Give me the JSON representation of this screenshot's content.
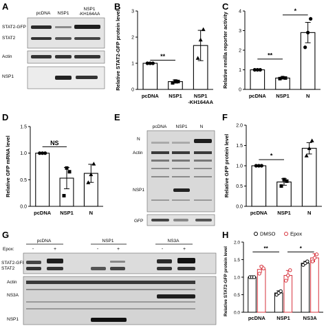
{
  "figure": {
    "panel_letters": [
      "A",
      "B",
      "C",
      "D",
      "E",
      "F",
      "G",
      "H"
    ],
    "blot_A": {
      "lanes": [
        "pcDNA",
        "NSP1",
        "NSP1\n-KH164AA"
      ],
      "lane1": "pcDNA",
      "lane2": "NSP1",
      "lane3a": "NSP1",
      "lane3b": "-KH164AA",
      "rows": [
        "STAT2-GFP",
        "STAT2",
        "Actin",
        "NSP1"
      ]
    },
    "blot_E": {
      "lanes": [
        "pcDNA",
        "NSP1",
        "N"
      ],
      "rows": [
        "N",
        "Actin",
        "NSP1",
        "GFP"
      ]
    },
    "blot_G": {
      "groups": [
        "pcDNA",
        "NSP1",
        "NS3A"
      ],
      "epox_label": "Epox:",
      "epox_signs": [
        "-",
        "+",
        "-",
        "+",
        "-",
        "+"
      ],
      "rows": [
        "STAT2-GFP",
        "STAT2",
        "Actin",
        "NS3A",
        "NSP1"
      ]
    }
  },
  "chart_data": [
    {
      "panel": "B",
      "type": "bar",
      "categories": [
        "pcDNA",
        "NSP1",
        "NSP1\n-KH164AA"
      ],
      "cat_line1": [
        "pcDNA",
        "NSP1",
        "NSP1"
      ],
      "cat_line2": [
        "",
        "",
        "-KH164AA"
      ],
      "values": [
        1.0,
        0.3,
        1.68
      ],
      "errors": [
        0.0,
        0.06,
        0.58
      ],
      "points": [
        [
          1.0,
          1.0,
          1.0
        ],
        [
          0.25,
          0.32,
          0.3
        ],
        [
          1.2,
          1.9,
          2.3
        ]
      ],
      "markers": [
        "circle",
        "square",
        "triangle"
      ],
      "ylabel": "Relative STAT2-GFP protein level",
      "ylim": [
        0,
        3
      ],
      "yticks": [
        0,
        1,
        2,
        3
      ],
      "significance": [
        {
          "from": 0,
          "to": 1,
          "label": "**",
          "y": 1.12
        }
      ]
    },
    {
      "panel": "C",
      "type": "bar",
      "categories": [
        "pcDNA",
        "NSP1",
        "N"
      ],
      "cat_line1": [
        "pcDNA",
        "NSP1",
        "N"
      ],
      "cat_line2": [
        "",
        "",
        ""
      ],
      "values": [
        1.0,
        0.58,
        2.9
      ],
      "errors": [
        0.0,
        0.05,
        0.52
      ],
      "points": [
        [
          1.0,
          1.0,
          1.0
        ],
        [
          0.55,
          0.6,
          0.58
        ],
        [
          2.15,
          2.9,
          3.6
        ]
      ],
      "markers": [
        "circle",
        "square",
        "circle"
      ],
      "ylabel": "Relative renilla reporter activity",
      "ylim": [
        0,
        4
      ],
      "yticks": [
        0,
        1,
        2,
        3,
        4
      ],
      "significance": [
        {
          "from": 0,
          "to": 1,
          "label": "**",
          "y": 1.55
        },
        {
          "from": 1,
          "to": 2,
          "label": "*",
          "y": 3.8
        }
      ]
    },
    {
      "panel": "D",
      "type": "bar",
      "categories": [
        "pcDNA",
        "NSP1",
        "N"
      ],
      "cat_line1": [
        "pcDNA",
        "NSP1",
        "N"
      ],
      "cat_line2": [
        "",
        "",
        ""
      ],
      "values": [
        1.0,
        0.53,
        0.62
      ],
      "errors": [
        0.0,
        0.2,
        0.17
      ],
      "points": [
        [
          1.0,
          1.0,
          1.0
        ],
        [
          0.2,
          0.72,
          0.65
        ],
        [
          0.45,
          0.6,
          0.8
        ]
      ],
      "markers": [
        "circle",
        "square",
        "triangle"
      ],
      "ylabel": "Relative GFP mRNA level",
      "ylim": [
        0,
        1.5
      ],
      "yticks": [
        0.0,
        0.5,
        1.0,
        1.5
      ],
      "significance": [
        {
          "from": 0,
          "to": 1,
          "label": "NS",
          "y": 1.12
        }
      ]
    },
    {
      "panel": "F",
      "type": "bar",
      "categories": [
        "pcDNA",
        "NSP1",
        "N"
      ],
      "cat_line1": [
        "pcDNA",
        "NSP1",
        "N"
      ],
      "cat_line2": [
        "",
        "",
        ""
      ],
      "values": [
        1.0,
        0.6,
        1.43
      ],
      "errors": [
        0.0,
        0.08,
        0.14
      ],
      "points": [
        [
          1.0,
          1.0,
          1.0
        ],
        [
          0.5,
          0.66,
          0.62
        ],
        [
          1.25,
          1.43,
          1.62
        ]
      ],
      "markers": [
        "circle",
        "square",
        "triangle"
      ],
      "ylabel": "Relative GFP protein level",
      "ylim": [
        0,
        2.0
      ],
      "yticks": [
        0.0,
        0.5,
        1.0,
        1.5,
        2.0
      ],
      "significance": [
        {
          "from": 0,
          "to": 1,
          "label": "*",
          "y": 1.15
        }
      ]
    },
    {
      "panel": "H",
      "type": "bar",
      "categories": [
        "pcDNA",
        "NSP1",
        "NS3A"
      ],
      "series": [
        {
          "name": "DMSO",
          "values": [
            1.0,
            0.55,
            1.4
          ],
          "errors": [
            0.0,
            0.06,
            0.05
          ],
          "color": "#000000",
          "points": [
            [
              1.0,
              1.0,
              1.0
            ],
            [
              0.5,
              0.55,
              0.6
            ],
            [
              1.35,
              1.4,
              1.45
            ]
          ]
        },
        {
          "name": "Epox",
          "values": [
            1.22,
            1.05,
            1.55
          ],
          "errors": [
            0.1,
            0.14,
            0.12
          ],
          "color": "#d6303a",
          "points": [
            [
              1.1,
              1.3,
              1.25
            ],
            [
              0.9,
              1.05,
              1.2
            ],
            [
              1.45,
              1.55,
              1.65
            ]
          ]
        }
      ],
      "ylabel": "Relative STAT2-GFP protein level",
      "ylim": [
        0,
        2.0
      ],
      "yticks": [
        0.0,
        0.5,
        1.0,
        1.5,
        2.0
      ],
      "legend_placement": "top",
      "significance": [
        {
          "from": 0,
          "to": 1,
          "label": "**",
          "y": 1.72
        },
        {
          "from": 1,
          "to": 2,
          "label": "*",
          "y": 1.72
        }
      ]
    }
  ]
}
